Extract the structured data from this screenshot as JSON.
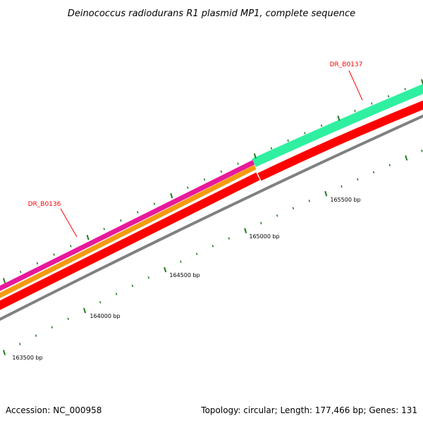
{
  "title": "Deinococcus radiodurans R1 plasmid MP1, complete sequence",
  "footer": {
    "accession": "Accession: NC_000958",
    "summary": "Topology: circular; Length: 177,466 bp; Genes: 131"
  },
  "colors": {
    "gene_label": "#ff0000",
    "minor_tick": "#1e7a1e",
    "backbone": "#808080",
    "pink": "#e8189a",
    "orange": "#f59a10",
    "red": "#ff0000",
    "mint": "#2ff0a0"
  },
  "genes": [
    {
      "label": "DR_B0136"
    },
    {
      "label": "DR_B0137"
    }
  ],
  "scale_labels": [
    {
      "text": "163500 bp"
    },
    {
      "text": "164000 bp"
    },
    {
      "text": "164500 bp"
    },
    {
      "text": "165000 bp"
    },
    {
      "text": "165500 bp"
    }
  ]
}
